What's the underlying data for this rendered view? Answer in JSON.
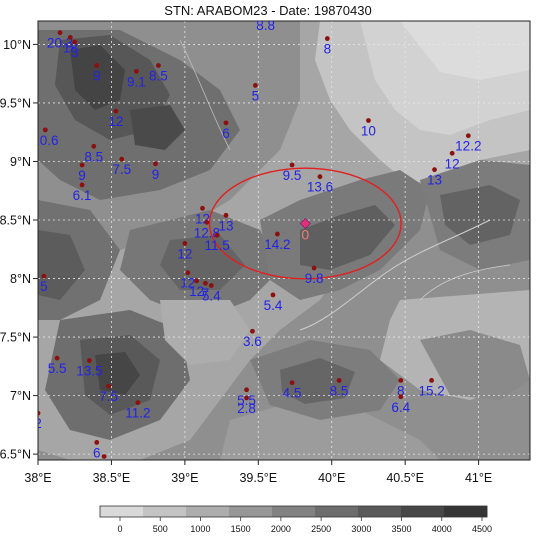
{
  "title": "STN: ARABOM23 - Date: 19870430",
  "axes": {
    "x_ticks": [
      {
        "lon": 38.0,
        "label": "38°E"
      },
      {
        "lon": 38.5,
        "label": "38.5°E"
      },
      {
        "lon": 39.0,
        "label": "39°E"
      },
      {
        "lon": 39.5,
        "label": "39.5°E"
      },
      {
        "lon": 40.0,
        "label": "40°E"
      },
      {
        "lon": 40.5,
        "label": "40.5°E"
      },
      {
        "lon": 41.0,
        "label": "41°E"
      }
    ],
    "y_ticks": [
      {
        "lat": 6.5,
        "label": "6.5°N"
      },
      {
        "lat": 7.0,
        "label": "7°N"
      },
      {
        "lat": 7.5,
        "label": "7.5°N"
      },
      {
        "lat": 8.0,
        "label": "8°N"
      },
      {
        "lat": 8.5,
        "label": "8.5°N"
      },
      {
        "lat": 9.0,
        "label": "9°N"
      },
      {
        "lat": 9.5,
        "label": "9.5°N"
      },
      {
        "lat": 10.0,
        "label": "10°N"
      }
    ],
    "lon_range": [
      38.0,
      41.35
    ],
    "lat_range": [
      6.45,
      10.2
    ],
    "grid": true
  },
  "target": {
    "lon": 39.82,
    "lat": 8.47,
    "label": "0",
    "marker_color": "#e0307a",
    "radius_deg": 0.45
  },
  "stations": [
    {
      "lon": 38.15,
      "lat": 10.1,
      "label": "20.3"
    },
    {
      "lon": 38.22,
      "lat": 10.06,
      "label": "18"
    },
    {
      "lon": 38.25,
      "lat": 10.02,
      "label": "3"
    },
    {
      "lon": 38.4,
      "lat": 9.82,
      "label": "9"
    },
    {
      "lon": 38.67,
      "lat": 9.77,
      "label": "9.1"
    },
    {
      "lon": 38.82,
      "lat": 9.82,
      "label": "8.5"
    },
    {
      "lon": 38.53,
      "lat": 9.43,
      "label": "12"
    },
    {
      "lon": 38.05,
      "lat": 9.27,
      "label": "10.6"
    },
    {
      "lon": 38.38,
      "lat": 9.13,
      "label": "8.5"
    },
    {
      "lon": 38.3,
      "lat": 8.97,
      "label": "9"
    },
    {
      "lon": 38.57,
      "lat": 9.02,
      "label": "7.5"
    },
    {
      "lon": 38.8,
      "lat": 8.98,
      "label": "9"
    },
    {
      "lon": 38.3,
      "lat": 8.8,
      "label": "6.1"
    },
    {
      "lon": 39.48,
      "lat": 9.65,
      "label": "5"
    },
    {
      "lon": 39.28,
      "lat": 9.33,
      "label": "6"
    },
    {
      "lon": 39.97,
      "lat": 10.05,
      "label": "8"
    },
    {
      "lon": 40.25,
      "lat": 9.35,
      "label": "10"
    },
    {
      "lon": 40.93,
      "lat": 9.22,
      "label": "12.2"
    },
    {
      "lon": 40.82,
      "lat": 9.07,
      "label": "12"
    },
    {
      "lon": 40.7,
      "lat": 8.93,
      "label": "13"
    },
    {
      "lon": 39.73,
      "lat": 8.97,
      "label": "9.5"
    },
    {
      "lon": 39.92,
      "lat": 8.87,
      "label": "13.6"
    },
    {
      "lon": 39.12,
      "lat": 8.6,
      "label": "12"
    },
    {
      "lon": 39.15,
      "lat": 8.48,
      "label": "12.8"
    },
    {
      "lon": 39.28,
      "lat": 8.54,
      "label": "13"
    },
    {
      "lon": 39.22,
      "lat": 8.37,
      "label": "11.5"
    },
    {
      "lon": 39.63,
      "lat": 8.38,
      "label": "14.2"
    },
    {
      "lon": 39.0,
      "lat": 8.3,
      "label": "12"
    },
    {
      "lon": 39.88,
      "lat": 8.09,
      "label": "9.8"
    },
    {
      "lon": 39.02,
      "lat": 8.05,
      "label": "12"
    },
    {
      "lon": 39.08,
      "lat": 7.98,
      "label": "12"
    },
    {
      "lon": 39.14,
      "lat": 7.96,
      "label": "7"
    },
    {
      "lon": 39.18,
      "lat": 7.94,
      "label": "5.4"
    },
    {
      "lon": 39.6,
      "lat": 7.86,
      "label": "5.4"
    },
    {
      "lon": 39.46,
      "lat": 7.55,
      "label": "3.6"
    },
    {
      "lon": 38.04,
      "lat": 8.02,
      "label": "5"
    },
    {
      "lon": 38.13,
      "lat": 7.32,
      "label": "5.5"
    },
    {
      "lon": 38.35,
      "lat": 7.3,
      "label": "13.5"
    },
    {
      "lon": 38.48,
      "lat": 7.08,
      "label": "7.5"
    },
    {
      "lon": 38.68,
      "lat": 6.94,
      "label": "11.2"
    },
    {
      "lon": 38.0,
      "lat": 6.85,
      "label": "2"
    },
    {
      "lon": 38.4,
      "lat": 6.6,
      "label": "6"
    },
    {
      "lon": 38.45,
      "lat": 6.48,
      "label": "8"
    },
    {
      "lon": 39.42,
      "lat": 7.05,
      "label": "5.5"
    },
    {
      "lon": 39.42,
      "lat": 6.98,
      "label": "2.8"
    },
    {
      "lon": 39.73,
      "lat": 7.11,
      "label": "4.5"
    },
    {
      "lon": 40.05,
      "lat": 7.13,
      "label": "8.5"
    },
    {
      "lon": 40.47,
      "lat": 7.13,
      "label": "8"
    },
    {
      "lon": 40.47,
      "lat": 6.99,
      "label": "6.4"
    },
    {
      "lon": 40.68,
      "lat": 7.13,
      "label": "15.2"
    },
    {
      "lon": 39.55,
      "lat": 10.25,
      "label": "8.8"
    }
  ],
  "colorbar": {
    "ticks": [
      "0",
      "500",
      "1000",
      "1500",
      "2000",
      "2500",
      "3000",
      "3500",
      "4000",
      "4500"
    ],
    "colors": [
      "#d9d9d9",
      "#c3c3c3",
      "#adadad",
      "#979797",
      "#828282",
      "#6d6d6d",
      "#595959",
      "#474747",
      "#363636"
    ]
  },
  "colors": {
    "station_dot": "#8b1111",
    "station_label": "#2323e6",
    "circle": "#e02020",
    "grid": "#e6e6e6"
  }
}
